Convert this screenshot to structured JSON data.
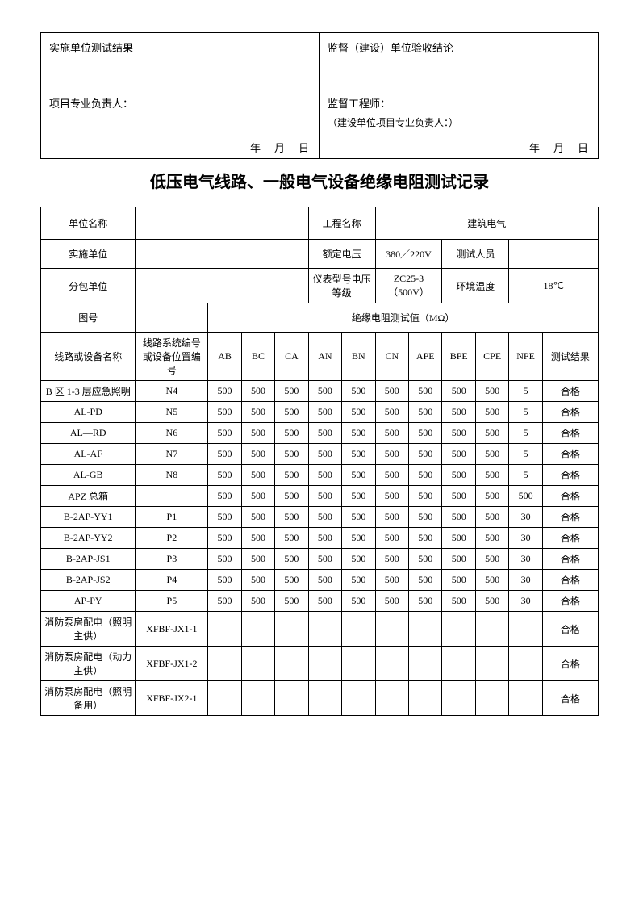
{
  "topBox": {
    "left": {
      "header": "实施单位测试结果",
      "mid": "项目专业负责人：",
      "date": "年　月　日"
    },
    "right": {
      "header": "监督（建设）单位验收结论",
      "mid": "监督工程师：",
      "sub": "（建设单位项目专业负责人：）",
      "date": "年　月　日"
    }
  },
  "title": "低压电气线路、一般电气设备绝缘电阻测试记录",
  "info": {
    "r1": {
      "c1": "单位名称",
      "c2": "",
      "c3": "工程名称",
      "c4": "建筑电气"
    },
    "r2": {
      "c1": "实施单位",
      "c2": "",
      "c3": "额定电压",
      "c4": "380／220V",
      "c5": "测试人员",
      "c6": ""
    },
    "r3": {
      "c1": "分包单位",
      "c2": "",
      "c3": "仪表型号电压等级",
      "c4": "ZC25-3（500V）",
      "c5": "环境温度",
      "c6": "18℃"
    },
    "r4": {
      "c1": "图号",
      "c2": "",
      "c3": "绝缘电阻测试值（MΩ）"
    },
    "r5": {
      "c1": "线路或设备名称",
      "c2": "线路系统编号或设备位置编号",
      "cols": [
        "AB",
        "BC",
        "CA",
        "AN",
        "BN",
        "CN",
        "APE",
        "BPE",
        "CPE",
        "NPE"
      ],
      "last": "测试结果"
    }
  },
  "rows": [
    {
      "name": "B 区 1-3 层应急照明",
      "code": "N4",
      "v": [
        "500",
        "500",
        "500",
        "500",
        "500",
        "500",
        "500",
        "500",
        "500",
        "5"
      ],
      "res": "合格"
    },
    {
      "name": "AL-PD",
      "code": "N5",
      "v": [
        "500",
        "500",
        "500",
        "500",
        "500",
        "500",
        "500",
        "500",
        "500",
        "5"
      ],
      "res": "合格"
    },
    {
      "name": "AL—RD",
      "code": "N6",
      "v": [
        "500",
        "500",
        "500",
        "500",
        "500",
        "500",
        "500",
        "500",
        "500",
        "5"
      ],
      "res": "合格"
    },
    {
      "name": "AL-AF",
      "code": "N7",
      "v": [
        "500",
        "500",
        "500",
        "500",
        "500",
        "500",
        "500",
        "500",
        "500",
        "5"
      ],
      "res": "合格"
    },
    {
      "name": "AL-GB",
      "code": "N8",
      "v": [
        "500",
        "500",
        "500",
        "500",
        "500",
        "500",
        "500",
        "500",
        "500",
        "5"
      ],
      "res": "合格"
    },
    {
      "name": "APZ 总箱",
      "code": "",
      "v": [
        "500",
        "500",
        "500",
        "500",
        "500",
        "500",
        "500",
        "500",
        "500",
        "500"
      ],
      "res": "合格"
    },
    {
      "name": "B-2AP-YY1",
      "code": "P1",
      "v": [
        "500",
        "500",
        "500",
        "500",
        "500",
        "500",
        "500",
        "500",
        "500",
        "30"
      ],
      "res": "合格"
    },
    {
      "name": "B-2AP-YY2",
      "code": "P2",
      "v": [
        "500",
        "500",
        "500",
        "500",
        "500",
        "500",
        "500",
        "500",
        "500",
        "30"
      ],
      "res": "合格"
    },
    {
      "name": "B-2AP-JS1",
      "code": "P3",
      "v": [
        "500",
        "500",
        "500",
        "500",
        "500",
        "500",
        "500",
        "500",
        "500",
        "30"
      ],
      "res": "合格"
    },
    {
      "name": "B-2AP-JS2",
      "code": "P4",
      "v": [
        "500",
        "500",
        "500",
        "500",
        "500",
        "500",
        "500",
        "500",
        "500",
        "30"
      ],
      "res": "合格"
    },
    {
      "name": "AP-PY",
      "code": "P5",
      "v": [
        "500",
        "500",
        "500",
        "500",
        "500",
        "500",
        "500",
        "500",
        "500",
        "30"
      ],
      "res": "合格"
    },
    {
      "name": "消防泵房配电（照明主供）",
      "code": "XFBF-JX1-1",
      "v": [
        "",
        "",
        "",
        "",
        "",
        "",
        "",
        "",
        "",
        ""
      ],
      "res": "合格",
      "tall": true
    },
    {
      "name": "消防泵房配电（动力主供）",
      "code": "XFBF-JX1-2",
      "v": [
        "",
        "",
        "",
        "",
        "",
        "",
        "",
        "",
        "",
        ""
      ],
      "res": "合格",
      "tall": true
    },
    {
      "name": "消防泵房配电（照明备用）",
      "code": "XFBF-JX2-1",
      "v": [
        "",
        "",
        "",
        "",
        "",
        "",
        "",
        "",
        "",
        ""
      ],
      "res": "合格",
      "tall": true
    }
  ]
}
